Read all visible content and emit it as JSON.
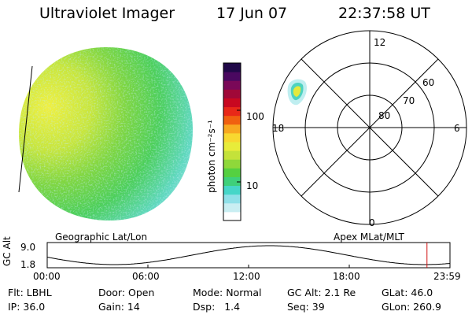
{
  "header": {
    "instrument": "Ultraviolet Imager",
    "date": "17 Jun 07",
    "time": "22:37:58 UT"
  },
  "colorbar": {
    "label": "photon cm⁻²s⁻¹",
    "ticks": [
      {
        "label": "100",
        "value": 100
      },
      {
        "label": "10",
        "value": 10
      }
    ],
    "scale": "log",
    "colors": [
      "#ffffff",
      "#c9eef2",
      "#8fe0e8",
      "#46d6c8",
      "#3fd07a",
      "#55d040",
      "#8fd83a",
      "#c4e23a",
      "#e8ec3a",
      "#f8d830",
      "#f8a820",
      "#f06010",
      "#e82818",
      "#c80820",
      "#a00838",
      "#7a0858",
      "#4a0860",
      "#200848"
    ]
  },
  "polar_plot": {
    "radial_labels": [
      "60",
      "70",
      "80"
    ],
    "hour_labels": {
      "top": "12",
      "bottom": "0",
      "left": "18",
      "right": "6"
    }
  },
  "map_labels": {
    "left": "Geographic Lat/Lon",
    "right": "Apex MLat/MLT"
  },
  "altitude_strip": {
    "ylabel": "GC Alt",
    "yticks": [
      "9.0",
      "1.8"
    ],
    "xticks": [
      "00:00",
      "06:00",
      "12:00",
      "18:00",
      "23:59"
    ],
    "current_marker_hour": 22.63
  },
  "info_panel": {
    "row1": {
      "flt": "Flt: LBHL",
      "door": "Door: Open",
      "mode": "Mode: Normal",
      "gcalt": "GC Alt: 2.1 Re",
      "glat": "GLat: 46.0"
    },
    "row2": {
      "ip": "IP: 36.0",
      "gain": "Gain: 14",
      "dsp": "Dsp:   1.4",
      "seq": "Seq: 39",
      "glon": "GLon: 260.9"
    }
  }
}
